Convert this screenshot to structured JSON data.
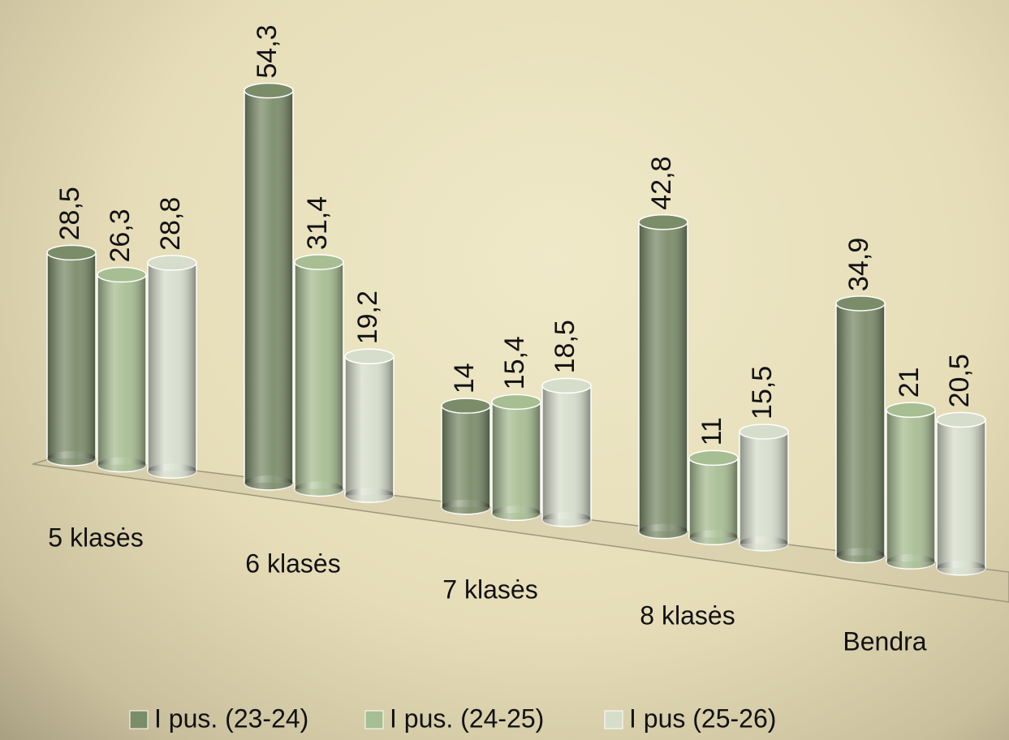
{
  "chart_data": {
    "type": "bar",
    "categories": [
      "5 klasės",
      "6 klasės",
      "7 klasės",
      "8 klasės",
      "Bendra"
    ],
    "series": [
      {
        "name": "I pus. (23-24)",
        "color": "#7b8c69",
        "values": [
          28.5,
          54.3,
          14,
          42.8,
          34.9
        ],
        "value_labels": [
          "28,5",
          "54,3",
          "14",
          "42,8",
          "34,9"
        ]
      },
      {
        "name": "I pus. (24-25)",
        "color": "#a7bd92",
        "values": [
          26.3,
          31.4,
          15.4,
          11,
          21
        ],
        "value_labels": [
          "26,3",
          "31,4",
          "15,4",
          "11",
          "21"
        ]
      },
      {
        "name": "I pus (25-26)",
        "color": "#d6ddcb",
        "values": [
          28.8,
          19.2,
          18.5,
          15.5,
          20.5
        ],
        "value_labels": [
          "28,8",
          "19,2",
          "18,5",
          "15,5",
          "20,5"
        ]
      }
    ]
  }
}
